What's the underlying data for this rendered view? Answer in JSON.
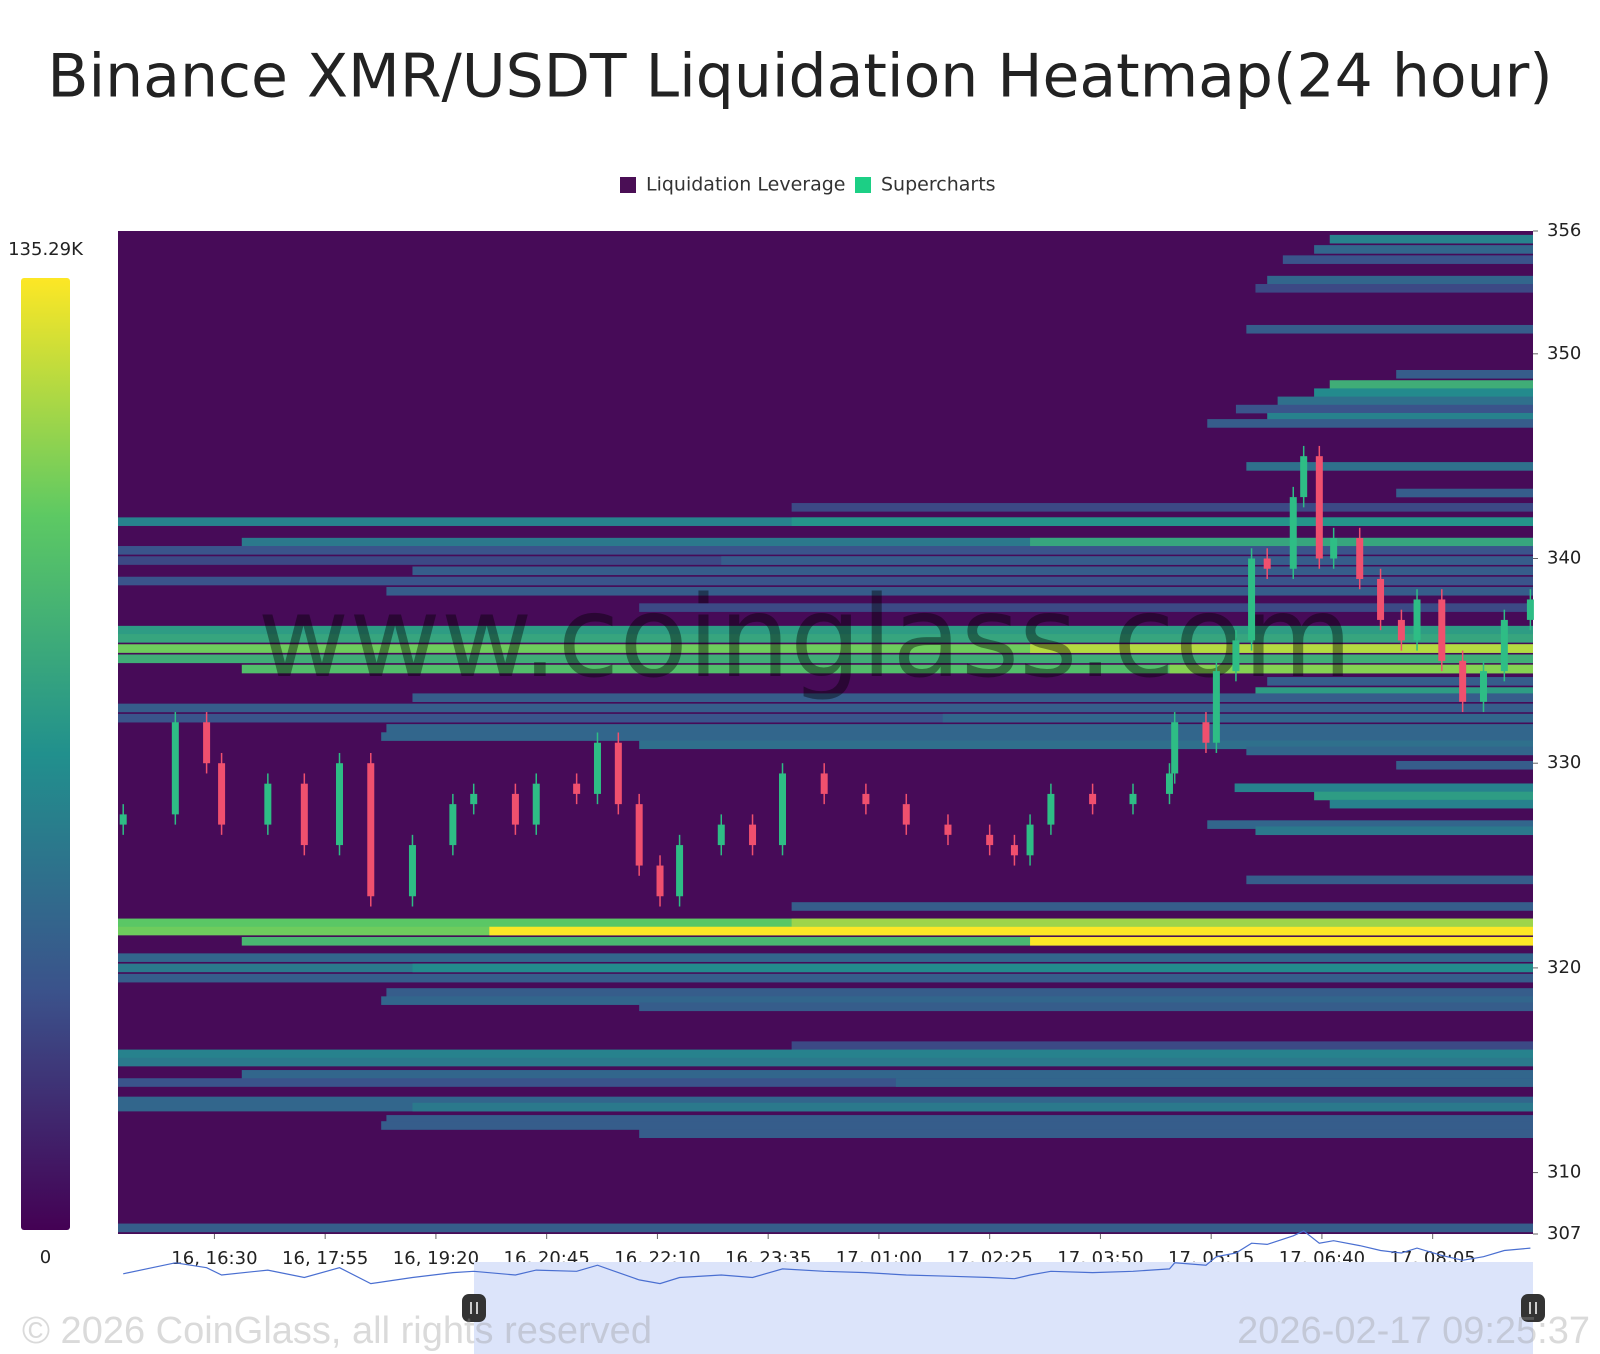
{
  "chart_data": {
    "type": "heatmap",
    "title": "Binance XMR/USDT Liquidation Heatmap(24 hour)",
    "legend": [
      {
        "name": "Liquidation Leverage",
        "color": "#4a0e55"
      },
      {
        "name": "Supercharts",
        "color": "#1ccf85"
      }
    ],
    "watermark": "www.coinglass.com",
    "copyright": "© 2026 CoinGlass, all rights reserved",
    "timestamp": "2026-02-17 09:25:37",
    "ylim": [
      307,
      356
    ],
    "yticks": [
      307,
      310,
      320,
      330,
      340,
      350,
      356
    ],
    "xlim": [
      -74,
      1012
    ],
    "xticks": [
      {
        "value": 0,
        "label": "16, 16:30"
      },
      {
        "value": 85,
        "label": "16, 17:55"
      },
      {
        "value": 170,
        "label": "16, 19:20"
      },
      {
        "value": 255,
        "label": "16, 20:45"
      },
      {
        "value": 340,
        "label": "16, 22:10"
      },
      {
        "value": 425,
        "label": "16, 23:35"
      },
      {
        "value": 510,
        "label": "17, 01:00"
      },
      {
        "value": 595,
        "label": "17, 02:25"
      },
      {
        "value": 680,
        "label": "17, 03:50"
      },
      {
        "value": 765,
        "label": "17, 05:15"
      },
      {
        "value": 850,
        "label": "17, 06:40"
      },
      {
        "value": 935,
        "label": "17, 08:05"
      }
    ],
    "zlim": [
      0,
      135290
    ],
    "zticks": [
      0,
      {
        "value": 135290,
        "label": "135.29K"
      }
    ],
    "background": "#470b58",
    "bands": [
      {
        "price": 355.6,
        "from": 856,
        "value": 60000
      },
      {
        "price": 355.1,
        "from": 844,
        "value": 45000
      },
      {
        "price": 354.6,
        "from": 820,
        "value": 35000
      },
      {
        "price": 353.6,
        "from": 808,
        "value": 45000
      },
      {
        "price": 353.2,
        "from": 799,
        "value": 30000
      },
      {
        "price": 351.2,
        "from": 792,
        "value": 40000
      },
      {
        "price": 349.0,
        "from": 907,
        "value": 40000
      },
      {
        "price": 348.5,
        "from": 856,
        "value": 85000
      },
      {
        "price": 348.1,
        "from": 844,
        "value": 65000
      },
      {
        "price": 347.7,
        "from": 816,
        "value": 50000
      },
      {
        "price": 347.3,
        "from": 784,
        "value": 35000
      },
      {
        "price": 346.9,
        "from": 808,
        "value": 60000
      },
      {
        "price": 346.6,
        "from": 762,
        "value": 40000
      },
      {
        "price": 344.5,
        "from": 792,
        "value": 50000
      },
      {
        "price": 343.2,
        "from": 907,
        "value": 40000
      },
      {
        "price": 342.5,
        "from": 443,
        "value": 30000
      },
      {
        "price": 341.8,
        "from": -74,
        "value": 60000
      },
      {
        "price": 341.8,
        "from": 443,
        "value": 70000
      },
      {
        "price": 340.8,
        "from": 21,
        "value": 55000
      },
      {
        "price": 340.8,
        "from": 626,
        "value": 80000
      },
      {
        "price": 340.4,
        "from": -74,
        "value": 35000
      },
      {
        "price": 339.9,
        "from": -74,
        "value": 30000
      },
      {
        "price": 339.9,
        "from": 389,
        "value": 40000
      },
      {
        "price": 339.4,
        "from": 152,
        "value": 40000
      },
      {
        "price": 338.9,
        "from": -74,
        "value": 35000
      },
      {
        "price": 338.4,
        "from": 132,
        "value": 40000
      },
      {
        "price": 337.6,
        "from": 326,
        "value": 30000
      },
      {
        "price": 336.5,
        "from": -74,
        "value": 75000
      },
      {
        "price": 336.1,
        "from": -74,
        "value": 80000
      },
      {
        "price": 335.6,
        "from": -74,
        "value": 105000
      },
      {
        "price": 335.6,
        "from": 626,
        "value": 120000
      },
      {
        "price": 335.1,
        "from": -74,
        "value": 85000
      },
      {
        "price": 334.6,
        "from": 21,
        "value": 95000
      },
      {
        "price": 334.6,
        "from": 733,
        "value": 110000
      },
      {
        "price": 334.0,
        "from": 808,
        "value": 40000
      },
      {
        "price": 333.5,
        "from": 799,
        "value": 75000
      },
      {
        "price": 333.2,
        "from": 152,
        "value": 40000
      },
      {
        "price": 332.7,
        "from": -74,
        "value": 40000
      },
      {
        "price": 332.2,
        "from": -74,
        "value": 35000
      },
      {
        "price": 332.2,
        "from": 559,
        "value": 45000
      },
      {
        "price": 331.7,
        "from": 132,
        "value": 45000
      },
      {
        "price": 331.3,
        "from": 128,
        "value": 45000
      },
      {
        "price": 330.9,
        "from": 326,
        "value": 50000
      },
      {
        "price": 330.6,
        "from": 792,
        "value": 45000
      },
      {
        "price": 329.9,
        "from": 907,
        "value": 40000
      },
      {
        "price": 328.8,
        "from": 783,
        "value": 60000
      },
      {
        "price": 328.4,
        "from": 844,
        "value": 75000
      },
      {
        "price": 328.0,
        "from": 856,
        "value": 60000
      },
      {
        "price": 327.0,
        "from": 762,
        "value": 45000
      },
      {
        "price": 326.7,
        "from": 799,
        "value": 55000
      },
      {
        "price": 324.3,
        "from": 792,
        "value": 40000
      },
      {
        "price": 323.0,
        "from": 443,
        "value": 40000
      },
      {
        "price": 322.2,
        "from": -74,
        "value": 100000
      },
      {
        "price": 322.2,
        "from": 443,
        "value": 115000
      },
      {
        "price": 321.8,
        "from": -74,
        "value": 105000
      },
      {
        "price": 321.8,
        "from": 211,
        "value": 135000
      },
      {
        "price": 321.3,
        "from": 21,
        "value": 90000
      },
      {
        "price": 321.3,
        "from": 626,
        "value": 135000
      },
      {
        "price": 320.5,
        "from": -74,
        "value": 45000
      },
      {
        "price": 320.0,
        "from": -74,
        "value": 55000
      },
      {
        "price": 320.0,
        "from": 152,
        "value": 65000
      },
      {
        "price": 319.5,
        "from": -74,
        "value": 40000
      },
      {
        "price": 318.8,
        "from": 132,
        "value": 40000
      },
      {
        "price": 318.4,
        "from": 128,
        "value": 45000
      },
      {
        "price": 318.1,
        "from": 326,
        "value": 40000
      },
      {
        "price": 316.2,
        "from": 443,
        "value": 30000
      },
      {
        "price": 315.8,
        "from": -74,
        "value": 60000
      },
      {
        "price": 315.4,
        "from": -74,
        "value": 55000
      },
      {
        "price": 314.8,
        "from": 21,
        "value": 45000
      },
      {
        "price": 314.4,
        "from": -74,
        "value": 35000
      },
      {
        "price": 314.4,
        "from": 523,
        "value": 45000
      },
      {
        "price": 313.5,
        "from": -74,
        "value": 45000
      },
      {
        "price": 313.2,
        "from": -74,
        "value": 45000
      },
      {
        "price": 313.2,
        "from": 152,
        "value": 55000
      },
      {
        "price": 312.6,
        "from": 132,
        "value": 40000
      },
      {
        "price": 312.3,
        "from": 128,
        "value": 40000
      },
      {
        "price": 311.9,
        "from": 326,
        "value": 40000
      },
      {
        "price": 307.3,
        "from": -74,
        "value": 40000
      }
    ],
    "candles": {
      "up_color": "#2ebd85",
      "down_color": "#f0506e",
      "x": [
        -70,
        -30,
        -6,
        5.5,
        41,
        69,
        96,
        120,
        152,
        183,
        199,
        231,
        247,
        278,
        294,
        310,
        326,
        342,
        357,
        389,
        413,
        436,
        468,
        500,
        531,
        563,
        595,
        614,
        626,
        642,
        674,
        705,
        733,
        737,
        761,
        769,
        784,
        796,
        808,
        828,
        836,
        848,
        859,
        879,
        895,
        911,
        923,
        942,
        958,
        974,
        990,
        1010
      ],
      "open": [
        327,
        327.5,
        332,
        330,
        327,
        329,
        326,
        330,
        323.5,
        326,
        328,
        328.5,
        327,
        329,
        328.5,
        331,
        328,
        325,
        323.5,
        326,
        327,
        326,
        329.5,
        328.5,
        328,
        327,
        326.5,
        326,
        325.5,
        327,
        328.5,
        328,
        328.5,
        329.5,
        332,
        331,
        334.5,
        336,
        340,
        339.5,
        343,
        345,
        340,
        341,
        339,
        337,
        336,
        338,
        335,
        333,
        334.5,
        337
      ],
      "high": [
        328,
        332.5,
        332.5,
        330.5,
        329.5,
        329.5,
        330.5,
        330.5,
        326.5,
        328.5,
        329,
        329,
        329.5,
        329.5,
        331.5,
        331.5,
        328.5,
        325.5,
        326.5,
        327.5,
        327.5,
        330,
        330,
        329,
        328.5,
        327.5,
        327,
        326.5,
        327.5,
        329,
        329,
        329,
        330,
        332.5,
        332.5,
        335,
        336.5,
        340.5,
        340.5,
        343.5,
        345.5,
        345.5,
        341.5,
        341.5,
        339.5,
        337.5,
        338.5,
        338.5,
        335.5,
        335,
        337.5,
        338.5
      ],
      "low": [
        326.5,
        327,
        329.5,
        326.5,
        326.5,
        325.5,
        325.5,
        323,
        323,
        325.5,
        327.5,
        326.5,
        326.5,
        328,
        328,
        327.5,
        324.5,
        323,
        323,
        325.5,
        325.5,
        325.5,
        328,
        327.5,
        326.5,
        326,
        325.5,
        325,
        325,
        326.5,
        327.5,
        327.5,
        328,
        329,
        330.5,
        330.5,
        334,
        335.5,
        339,
        339,
        342.5,
        339.5,
        339.5,
        338.5,
        336.5,
        335.5,
        335.5,
        334.5,
        332.5,
        332.5,
        334,
        336.5
      ],
      "close": [
        327.5,
        332,
        330,
        327,
        329,
        326,
        330,
        323.5,
        326,
        328,
        328.5,
        327,
        329,
        328.5,
        331,
        328,
        325,
        323.5,
        326,
        327,
        326,
        329.5,
        328.5,
        328,
        327,
        326.5,
        326,
        325.5,
        327,
        328.5,
        328,
        328.5,
        329.5,
        332,
        331,
        334.5,
        336,
        340,
        339.5,
        343,
        345,
        340,
        341,
        339,
        337,
        336,
        338,
        335,
        333,
        334.5,
        337,
        338
      ]
    }
  }
}
